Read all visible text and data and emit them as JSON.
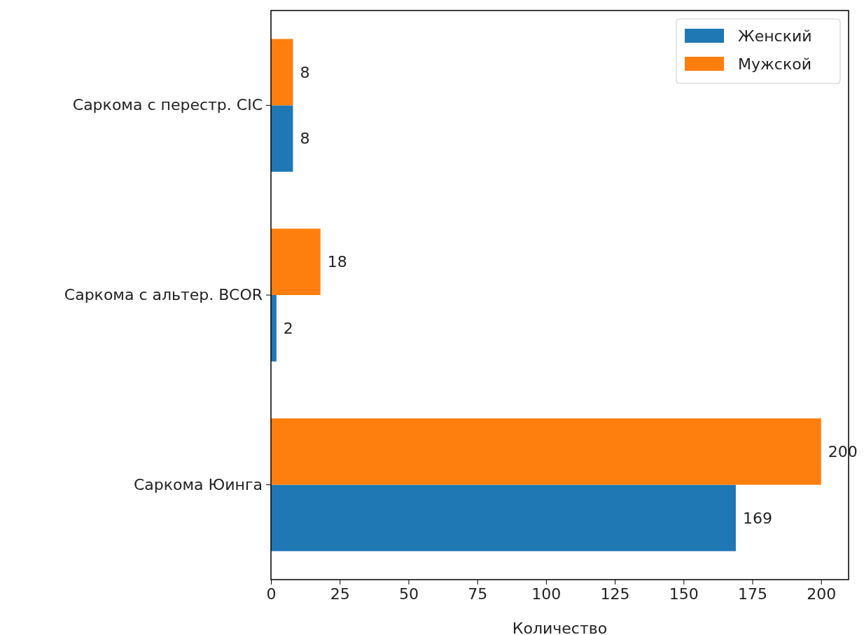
{
  "chart_data": {
    "type": "bar",
    "orientation": "horizontal",
    "xlabel": "Количество",
    "categories": [
      "Саркома с перестр. CIC",
      "Саркома с альтер. BCOR",
      "Саркома Юинга"
    ],
    "series": [
      {
        "name": "Женский",
        "color": "#1f77b4",
        "values": [
          8,
          2,
          169
        ]
      },
      {
        "name": "Мужской",
        "color": "#ff7f0e",
        "values": [
          8,
          18,
          200
        ]
      }
    ],
    "xlim": [
      0,
      210
    ],
    "xticks": [
      0,
      25,
      50,
      75,
      100,
      125,
      150,
      175,
      200
    ],
    "data_labels": true,
    "legend": "top right",
    "grid": false
  }
}
